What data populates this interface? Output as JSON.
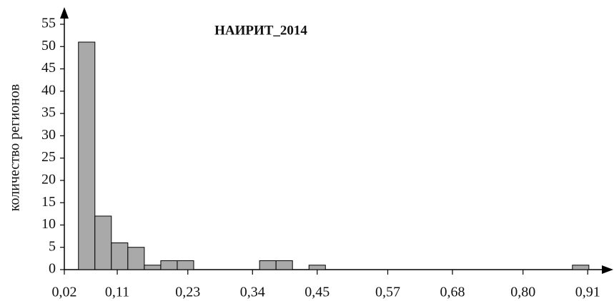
{
  "chart_data": {
    "type": "histogram",
    "title": "НАИРИТ_2014",
    "y_label": "количество регионов",
    "bins": [
      0.044,
      0.072,
      0.1,
      0.128,
      0.156,
      0.184,
      0.212,
      0.24,
      0.268,
      0.296,
      0.324,
      0.352,
      0.38,
      0.408,
      0.436,
      0.464,
      0.492,
      0.52,
      0.548,
      0.576,
      0.604,
      0.632,
      0.66,
      0.688,
      0.716,
      0.744,
      0.772,
      0.8,
      0.828,
      0.856,
      0.884,
      0.912
    ],
    "values": [
      51,
      12,
      6,
      5,
      1,
      2,
      2,
      0,
      0,
      0,
      0,
      2,
      2,
      0,
      1,
      0,
      0,
      0,
      0,
      0,
      0,
      0,
      0,
      0,
      0,
      0,
      0,
      0,
      0,
      0,
      1
    ],
    "color": "#a9a9a9",
    "xlim": [
      0.02,
      0.945
    ],
    "xticks": [
      {
        "value": 0.02,
        "label": "0,02"
      },
      {
        "value": 0.11,
        "label": "0,11"
      },
      {
        "value": 0.23,
        "label": "0,23"
      },
      {
        "value": 0.34,
        "label": "0,34"
      },
      {
        "value": 0.45,
        "label": "0,45"
      },
      {
        "value": 0.57,
        "label": "0,57"
      },
      {
        "value": 0.68,
        "label": "0,68"
      },
      {
        "value": 0.8,
        "label": "0,80"
      },
      {
        "value": 0.91,
        "label": "0,91"
      }
    ],
    "ylim": [
      0,
      55
    ],
    "yticks": [
      0,
      5,
      10,
      15,
      20,
      25,
      30,
      35,
      40,
      45,
      50,
      55
    ]
  }
}
